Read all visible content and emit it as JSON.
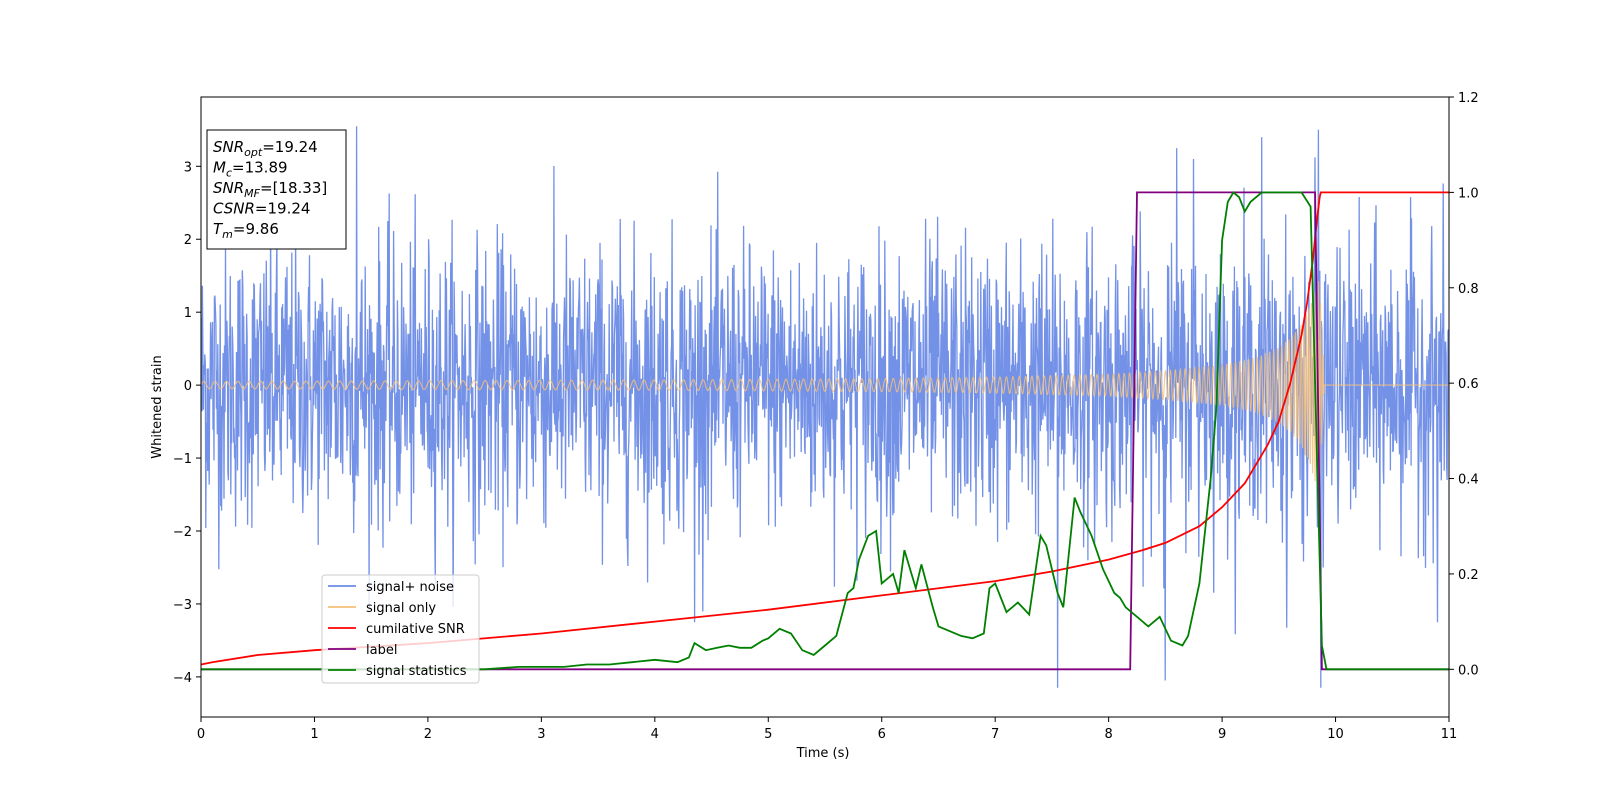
{
  "chart_data": {
    "type": "line",
    "title": "",
    "xlabel": "Time (s)",
    "ylabel": "Whitened strain",
    "xlim": [
      0,
      11
    ],
    "ylim_left": [
      -4.55,
      3.95
    ],
    "ylim_right": [
      -0.1,
      1.2
    ],
    "x_ticks": [
      0,
      1,
      2,
      3,
      4,
      5,
      6,
      7,
      8,
      9,
      10,
      11
    ],
    "x_tick_labels": [
      "0",
      "1",
      "2",
      "3",
      "4",
      "5",
      "6",
      "7",
      "8",
      "9",
      "10",
      "11"
    ],
    "y_left_ticks": [
      -4,
      -3,
      -2,
      -1,
      0,
      1,
      2,
      3
    ],
    "y_left_tick_labels": [
      "−4",
      "−3",
      "−2",
      "−1",
      "0",
      "1",
      "2",
      "3"
    ],
    "y_right_ticks": [
      0.0,
      0.2,
      0.4,
      0.6,
      0.8,
      1.0,
      1.2
    ],
    "y_right_tick_labels": [
      "0.0",
      "0.2",
      "0.4",
      "0.6",
      "0.8",
      "1.0",
      "1.2"
    ],
    "grid": false,
    "legend_position": "lower-left",
    "info_box": {
      "position": "top-left",
      "lines": [
        {
          "main": "SNR",
          "sub": "opt",
          "value": "=19.24"
        },
        {
          "main": "M",
          "sub": "c",
          "value": "=13.89"
        },
        {
          "main": "SNR",
          "sub": "MF",
          "value": "=[18.33]"
        },
        {
          "main": "CSNR",
          "sub": "",
          "value": "=19.24"
        },
        {
          "main": "T",
          "sub": "m",
          "value": "=9.86"
        }
      ]
    },
    "series": [
      {
        "name": "signal+ noise",
        "axis": "left",
        "color": "#6b8be6",
        "description_values": {
          "noise_typical_range": [
            -1.9,
            2.2
          ],
          "peak_max_values": [
            [
              1.37,
              3.55
            ],
            [
              9.85,
              3.5
            ],
            [
              9.35,
              3.4
            ],
            [
              8.6,
              3.25
            ],
            [
              8.75,
              3.1
            ]
          ],
          "peak_min_values": [
            [
              7.55,
              -4.15
            ],
            [
              9.87,
              -4.15
            ],
            [
              8.5,
              -4.05
            ],
            [
              4.35,
              -3.25
            ],
            [
              10.9,
              -3.25
            ]
          ]
        }
      },
      {
        "name": "signal only",
        "axis": "left",
        "color": "#f5c07a",
        "envelope": {
          "t": [
            0,
            2,
            4,
            6,
            7,
            8,
            8.5,
            9,
            9.3,
            9.5,
            9.6,
            9.7,
            9.8,
            9.86,
            9.9,
            11
          ],
          "amp": [
            0.05,
            0.06,
            0.07,
            0.09,
            0.11,
            0.15,
            0.2,
            0.28,
            0.38,
            0.52,
            0.65,
            0.85,
            1.25,
            1.5,
            0.0,
            0.0
          ]
        }
      },
      {
        "name": "cumilative SNR",
        "axis": "right",
        "color": "#ff0000",
        "x": [
          0,
          0.1,
          0.5,
          1,
          2,
          3,
          4,
          5,
          6,
          7,
          7.5,
          8,
          8.3,
          8.5,
          8.8,
          9,
          9.2,
          9.4,
          9.5,
          9.6,
          9.7,
          9.75,
          9.8,
          9.84,
          9.86,
          9.87,
          11
        ],
        "y": [
          0.01,
          0.015,
          0.03,
          0.04,
          0.055,
          0.075,
          0.1,
          0.125,
          0.155,
          0.185,
          0.205,
          0.23,
          0.25,
          0.265,
          0.3,
          0.34,
          0.39,
          0.47,
          0.52,
          0.6,
          0.7,
          0.77,
          0.86,
          0.95,
          0.99,
          1.0,
          1.0
        ]
      },
      {
        "name": "label",
        "axis": "right",
        "color": "#800080",
        "x": [
          0,
          8.19,
          8.25,
          9.82,
          9.88,
          11
        ],
        "y": [
          0,
          0,
          1,
          1,
          0,
          0
        ]
      },
      {
        "name": "signal statistics",
        "axis": "right",
        "color": "#008000",
        "x": [
          0,
          1,
          1.5,
          2,
          2.5,
          2.8,
          3,
          3.2,
          3.4,
          3.6,
          3.8,
          4,
          4.2,
          4.3,
          4.35,
          4.45,
          4.55,
          4.65,
          4.75,
          4.85,
          4.95,
          5.0,
          5.1,
          5.2,
          5.3,
          5.4,
          5.5,
          5.6,
          5.7,
          5.75,
          5.8,
          5.88,
          5.95,
          6.0,
          6.1,
          6.15,
          6.2,
          6.3,
          6.35,
          6.45,
          6.5,
          6.6,
          6.7,
          6.8,
          6.9,
          6.95,
          7.0,
          7.1,
          7.2,
          7.3,
          7.4,
          7.45,
          7.55,
          7.6,
          7.7,
          7.75,
          7.85,
          7.95,
          8.05,
          8.1,
          8.15,
          8.25,
          8.35,
          8.45,
          8.55,
          8.65,
          8.7,
          8.8,
          8.9,
          8.95,
          9.0,
          9.05,
          9.1,
          9.15,
          9.2,
          9.25,
          9.35,
          9.5,
          9.7,
          9.78,
          9.82,
          9.88,
          9.92,
          10,
          11
        ],
        "y": [
          0,
          0,
          0,
          0,
          0,
          0.005,
          0.005,
          0.005,
          0.01,
          0.01,
          0.015,
          0.02,
          0.015,
          0.025,
          0.055,
          0.04,
          0.045,
          0.05,
          0.045,
          0.045,
          0.06,
          0.065,
          0.085,
          0.075,
          0.04,
          0.03,
          0.05,
          0.07,
          0.16,
          0.17,
          0.23,
          0.28,
          0.29,
          0.18,
          0.2,
          0.16,
          0.25,
          0.17,
          0.22,
          0.13,
          0.09,
          0.08,
          0.07,
          0.065,
          0.075,
          0.17,
          0.18,
          0.12,
          0.14,
          0.115,
          0.28,
          0.26,
          0.16,
          0.13,
          0.36,
          0.33,
          0.28,
          0.21,
          0.16,
          0.15,
          0.13,
          0.11,
          0.09,
          0.11,
          0.06,
          0.05,
          0.07,
          0.18,
          0.4,
          0.55,
          0.9,
          0.98,
          1.0,
          0.99,
          0.96,
          0.98,
          1.0,
          1.0,
          1.0,
          0.97,
          0.6,
          0.05,
          0.0,
          0.0,
          0.0
        ]
      }
    ]
  }
}
